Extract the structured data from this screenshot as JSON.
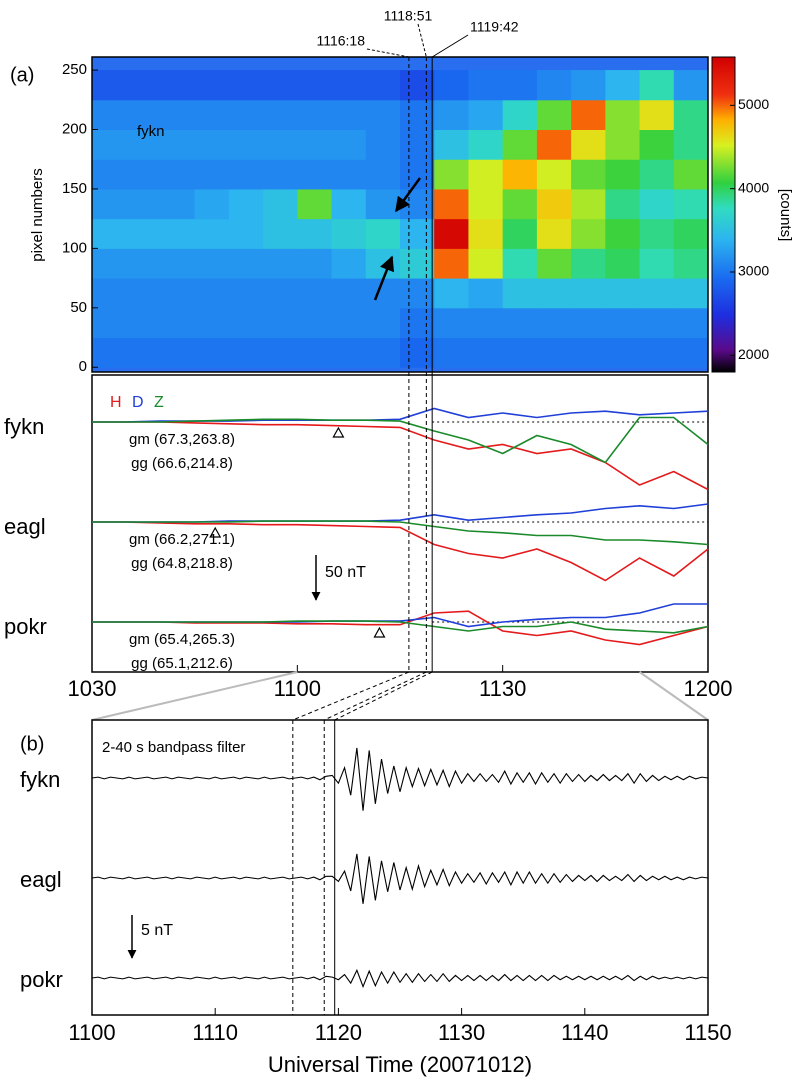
{
  "chart_data": [
    {
      "type": "heatmap",
      "panel_label": "(a)",
      "annotation": "fykn",
      "ylabel": "pixel numbers",
      "xlim": [
        630,
        720
      ],
      "ylim": [
        -4,
        261
      ],
      "yticks": [
        0,
        50,
        100,
        150,
        200,
        250
      ],
      "x": [
        632.5,
        637.5,
        642.5,
        647.5,
        652.5,
        657.5,
        662.5,
        667.5,
        672.5,
        677.5,
        682.5,
        687.5,
        692.5,
        697.5,
        702.5,
        707.5,
        712.5,
        717.5
      ],
      "y": [
        12.5,
        37.5,
        62.5,
        87.5,
        112.5,
        137.5,
        162.5,
        187.5,
        212.5,
        237.5
      ],
      "z": [
        [
          3000,
          3000,
          3000,
          3000,
          3000,
          3000,
          3000,
          3000,
          3000,
          2900,
          3000,
          3000,
          3000,
          3000,
          3000,
          3000,
          3000,
          3000
        ],
        [
          3100,
          3100,
          3100,
          3100,
          3100,
          3100,
          3100,
          3100,
          3100,
          3000,
          3100,
          3100,
          3100,
          3100,
          3100,
          3100,
          3100,
          3100
        ],
        [
          3100,
          3100,
          3100,
          3100,
          3100,
          3100,
          3100,
          3100,
          3100,
          3100,
          3400,
          3300,
          3500,
          3500,
          3500,
          3500,
          3500,
          3500
        ],
        [
          3200,
          3200,
          3200,
          3200,
          3200,
          3200,
          3200,
          3300,
          3500,
          3600,
          5000,
          4500,
          3800,
          4200,
          3900,
          4000,
          3800,
          3900
        ],
        [
          3400,
          3400,
          3400,
          3400,
          3400,
          3500,
          3500,
          3600,
          3700,
          3400,
          5500,
          4600,
          4000,
          4600,
          4300,
          4100,
          3900,
          4000
        ],
        [
          3200,
          3200,
          3200,
          3300,
          3400,
          3500,
          4200,
          3400,
          3200,
          3100,
          5000,
          4500,
          4200,
          4700,
          4400,
          3900,
          3700,
          3800
        ],
        [
          3100,
          3100,
          3100,
          3100,
          3100,
          3100,
          3100,
          3100,
          3100,
          3000,
          4300,
          4500,
          4800,
          4500,
          4200,
          4100,
          3900,
          4200
        ],
        [
          3200,
          3200,
          3200,
          3200,
          3200,
          3200,
          3200,
          3200,
          3100,
          3000,
          3500,
          3700,
          4200,
          5000,
          4600,
          4300,
          4100,
          3900
        ],
        [
          3100,
          3100,
          3100,
          3100,
          3100,
          3100,
          3100,
          3100,
          3100,
          3000,
          3200,
          3300,
          3700,
          4200,
          5000,
          4300,
          4600,
          3900
        ],
        [
          2800,
          2800,
          2800,
          2800,
          2800,
          2800,
          2800,
          2800,
          2800,
          2700,
          2900,
          3000,
          3000,
          3100,
          3200,
          3400,
          3800,
          3200
        ]
      ],
      "clim": [
        1800,
        5580
      ],
      "cticks": [
        2000,
        3000,
        4000,
        5000
      ],
      "clabel": "[counts]",
      "colormap": "rainbow",
      "markers": [
        {
          "value": 676.3,
          "label": "1116:18",
          "style": "dashed"
        },
        {
          "value": 678.85,
          "label": "1118:51",
          "style": "dashed"
        },
        {
          "value": 679.7,
          "label": "1119:42",
          "style": "solid"
        }
      ]
    },
    {
      "type": "line",
      "xlim": [
        630,
        720
      ],
      "xticks": [
        {
          "value": 630,
          "label": "1030"
        },
        {
          "value": 660,
          "label": "1100"
        },
        {
          "value": 690,
          "label": "1130"
        },
        {
          "value": 720,
          "label": "1200"
        }
      ],
      "x": [
        630,
        635,
        640,
        645,
        650,
        655,
        660,
        665,
        670,
        675,
        680,
        685,
        690,
        695,
        700,
        705,
        710,
        715,
        720
      ],
      "components": [
        {
          "name": "H",
          "color": "#e41a1c"
        },
        {
          "name": "D",
          "color": "#1f3fd8"
        },
        {
          "name": "Z",
          "color": "#1a8a2a"
        }
      ],
      "stations": [
        {
          "name": "fykn",
          "gm": "gm (67.3,263.8)",
          "gg": "gg (66.6,214.8)",
          "triangle_x": 666,
          "series": [
            {
              "values": [
                0,
                0,
                0,
                -1,
                -2,
                -3,
                -3,
                -4,
                -5,
                -6,
                -20,
                -30,
                -25,
                -35,
                -30,
                -45,
                -70,
                -55,
                -75
              ]
            },
            {
              "values": [
                0,
                0,
                1,
                1,
                1,
                2,
                2,
                2,
                2,
                3,
                15,
                5,
                10,
                5,
                10,
                12,
                8,
                10,
                12
              ]
            },
            {
              "values": [
                0,
                0,
                0,
                1,
                2,
                3,
                3,
                2,
                2,
                1,
                -10,
                -20,
                -35,
                -15,
                -25,
                -45,
                5,
                5,
                -25
              ]
            }
          ]
        },
        {
          "name": "eagl",
          "gm": "gm (66.2,271.1)",
          "gg": "gg (64.8,218.8)",
          "triangle_x": 648,
          "series": [
            {
              "values": [
                0,
                0,
                -1,
                -2,
                -2,
                -3,
                -3,
                -4,
                -5,
                -6,
                -25,
                -35,
                -40,
                -30,
                -45,
                -65,
                -40,
                -60,
                -30
              ]
            },
            {
              "values": [
                0,
                0,
                0,
                0,
                1,
                1,
                1,
                1,
                1,
                2,
                8,
                2,
                5,
                8,
                10,
                15,
                18,
                15,
                20
              ]
            },
            {
              "values": [
                0,
                0,
                0,
                0,
                0,
                1,
                1,
                1,
                1,
                0,
                -5,
                -10,
                -12,
                -15,
                -15,
                -20,
                -20,
                -22,
                -25
              ]
            }
          ]
        },
        {
          "name": "pokr",
          "gm": "gm (65.4,265.3)",
          "gg": "gg (65.1,212.6)",
          "triangle_x": 672,
          "series": [
            {
              "values": [
                0,
                0,
                0,
                -1,
                -1,
                -1,
                -2,
                -2,
                -3,
                -3,
                10,
                12,
                -10,
                -15,
                -10,
                -20,
                -25,
                -15,
                -5
              ]
            },
            {
              "values": [
                0,
                0,
                0,
                0,
                0,
                0,
                0,
                1,
                1,
                1,
                5,
                -5,
                0,
                3,
                5,
                5,
                10,
                20,
                20
              ]
            },
            {
              "values": [
                0,
                0,
                0,
                0,
                0,
                0,
                1,
                1,
                1,
                0,
                -5,
                -10,
                -5,
                -5,
                0,
                -8,
                -10,
                -12,
                -5
              ]
            }
          ]
        }
      ],
      "scale_bar": {
        "value": 50,
        "label": "50 nT"
      }
    },
    {
      "type": "line",
      "panel_label": "(b)",
      "annotation": "2-40 s bandpass filter",
      "xlim": [
        660,
        710
      ],
      "xticks": [
        {
          "value": 660,
          "label": "1100"
        },
        {
          "value": 670,
          "label": "1110"
        },
        {
          "value": 680,
          "label": "1120"
        },
        {
          "value": 690,
          "label": "1130"
        },
        {
          "value": 700,
          "label": "1140"
        },
        {
          "value": 710,
          "label": "1150"
        }
      ],
      "xlabel": "Universal Time (20071012)",
      "color": "#000000",
      "x": [
        660,
        660.5,
        661,
        661.5,
        662,
        662.5,
        663,
        663.5,
        664,
        664.5,
        665,
        665.5,
        666,
        666.5,
        667,
        667.5,
        668,
        668.5,
        669,
        669.5,
        670,
        670.5,
        671,
        671.5,
        672,
        672.5,
        673,
        673.5,
        674,
        674.5,
        675,
        675.5,
        676,
        676.5,
        677,
        677.5,
        678,
        678.5,
        679,
        679.5,
        680,
        680.5,
        681,
        681.5,
        682,
        682.5,
        683,
        683.5,
        684,
        684.5,
        685,
        685.5,
        686,
        686.5,
        687,
        687.5,
        688,
        688.5,
        689,
        689.5,
        690,
        690.5,
        691,
        691.5,
        692,
        692.5,
        693,
        693.5,
        694,
        694.5,
        695,
        695.5,
        696,
        696.5,
        697,
        697.5,
        698,
        698.5,
        699,
        699.5,
        700,
        700.5,
        701,
        701.5,
        702,
        702.5,
        703,
        703.5,
        704,
        704.5,
        705,
        705.5,
        706,
        706.5,
        707,
        707.5,
        708,
        708.5,
        709,
        709.5,
        710
      ],
      "series": [
        {
          "name": "fykn",
          "values": [
            0,
            0.1,
            -0.1,
            0.1,
            0,
            -0.1,
            0.1,
            -0.1,
            0,
            0.1,
            -0.1,
            0,
            0.1,
            -0.1,
            0.1,
            0,
            -0.1,
            0.1,
            0,
            -0.1,
            0.1,
            -0.1,
            0,
            0.1,
            -0.1,
            0.1,
            0,
            -0.1,
            0.1,
            -0.1,
            0,
            0.1,
            -0.1,
            0,
            0.1,
            -0.1,
            0.1,
            -0.2,
            0.2,
            0.3,
            -0.6,
            1.2,
            -2,
            3.5,
            -3.8,
            3.2,
            -3,
            2.2,
            -1.8,
            1.4,
            -1.6,
            1.2,
            -1,
            1.1,
            -0.9,
            1,
            -0.8,
            0.9,
            -1,
            0.8,
            -0.6,
            0.5,
            -0.4,
            0.5,
            -0.4,
            0.4,
            -0.5,
            0.8,
            -0.7,
            0.6,
            -0.5,
            0.6,
            -0.7,
            0.6,
            -0.5,
            0.5,
            -0.6,
            0.5,
            -0.4,
            0.4,
            -0.4,
            0.3,
            -0.3,
            0.4,
            -0.3,
            0.3,
            -0.3,
            0.5,
            -0.6,
            0.5,
            -0.4,
            0.3,
            -0.3,
            0.2,
            -0.2,
            0.2,
            -0.2,
            0.2,
            -0.1,
            0.1,
            0
          ]
        },
        {
          "name": "eagl",
          "values": [
            0,
            0.1,
            -0.1,
            0.1,
            0,
            -0.1,
            0.1,
            -0.1,
            0,
            0.1,
            -0.1,
            0,
            0.1,
            -0.1,
            0.1,
            0,
            -0.1,
            0.1,
            0,
            -0.1,
            0.1,
            -0.1,
            0,
            0.1,
            -0.1,
            0.1,
            0,
            -0.1,
            0.1,
            -0.1,
            0,
            0.1,
            -0.1,
            0,
            0.1,
            -0.1,
            0.1,
            -0.2,
            0.2,
            0.2,
            -0.4,
            0.8,
            -1.5,
            2.8,
            -3,
            2.5,
            -2.6,
            2,
            -1.6,
            1.8,
            -1.4,
            1.2,
            -1.3,
            1.4,
            -1,
            0.9,
            -0.8,
            1,
            -0.9,
            0.7,
            -0.6,
            0.5,
            -0.5,
            0.6,
            -0.7,
            0.6,
            -0.5,
            0.7,
            -0.8,
            0.7,
            -0.6,
            0.7,
            -0.6,
            0.5,
            -0.6,
            0.5,
            -0.5,
            0.4,
            -0.4,
            0.3,
            -0.3,
            0.3,
            -0.4,
            0.3,
            -0.3,
            0.2,
            -0.3,
            0.4,
            -0.4,
            0.3,
            -0.3,
            0.2,
            -0.2,
            0.2,
            -0.2,
            0.1,
            -0.2,
            0.1,
            -0.1,
            0.1,
            0
          ]
        },
        {
          "name": "pokr",
          "values": [
            0,
            0.1,
            -0.1,
            0.1,
            0,
            -0.1,
            0.1,
            -0.1,
            0,
            0.1,
            -0.1,
            0,
            0.1,
            -0.1,
            0.1,
            0,
            -0.1,
            0.1,
            0,
            -0.1,
            0.1,
            -0.1,
            0,
            0.1,
            -0.1,
            0.1,
            0,
            -0.1,
            0.1,
            -0.1,
            0,
            0.1,
            -0.1,
            0,
            0.1,
            -0.1,
            0.1,
            -0.2,
            0.2,
            0.1,
            -0.2,
            0.4,
            -0.6,
            0.9,
            -1,
            0.8,
            -0.9,
            0.7,
            -0.6,
            0.7,
            -0.5,
            0.5,
            -0.5,
            0.5,
            -0.4,
            0.4,
            -0.4,
            0.5,
            -0.4,
            0.3,
            -0.3,
            0.3,
            -0.3,
            0.3,
            -0.3,
            0.3,
            -0.3,
            0.4,
            -0.3,
            0.3,
            -0.3,
            0.3,
            -0.3,
            0.3,
            -0.3,
            0.3,
            -0.2,
            0.2,
            -0.2,
            0.2,
            -0.2,
            0.2,
            -0.2,
            0.2,
            -0.2,
            0.2,
            -0.2,
            0.3,
            -0.3,
            0.2,
            -0.2,
            0.2,
            -0.1,
            0.1,
            -0.1,
            0.1,
            -0.1,
            0.1,
            -0.1,
            0.1,
            0
          ]
        }
      ],
      "scale_bar": {
        "value": 5,
        "label": "5 nT"
      }
    }
  ]
}
